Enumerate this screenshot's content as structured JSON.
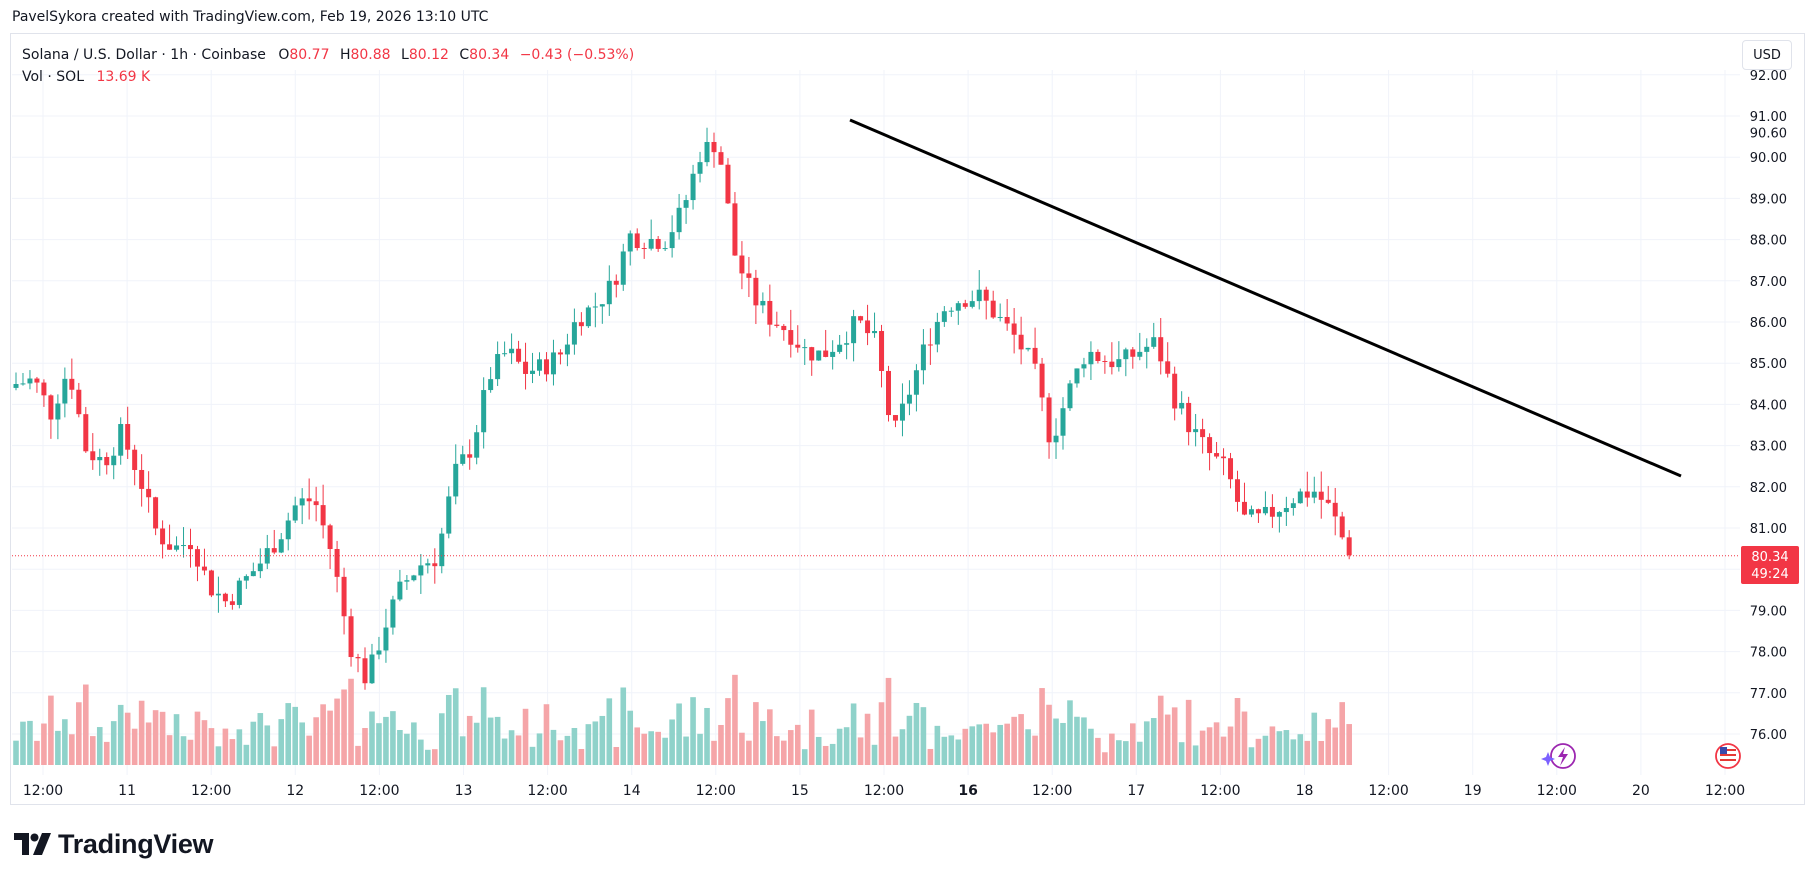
{
  "attribution": "PavelSykora created with TradingView.com, Feb 19, 2026 13:10 UTC",
  "legend": {
    "symbol": "Solana / U.S. Dollar · 1h · Coinbase",
    "o_label": "O",
    "o_value": "80.77",
    "h_label": "H",
    "h_value": "80.88",
    "l_label": "L",
    "l_value": "80.12",
    "c_label": "C",
    "c_value": "80.34",
    "change": "−0.43 (−0.53%)",
    "vol_label": "Vol · SOL",
    "vol_value": "13.69 K"
  },
  "currency_button": "USD",
  "logo_text": "TradingView",
  "price_tag": {
    "price": "80.34",
    "countdown": "49:24"
  },
  "colors": {
    "up": "#26a69a",
    "down": "#f23645",
    "vol_up": "#8fd2ca",
    "vol_down": "#f5a5a8",
    "trendline": "#000000"
  },
  "icons": [
    "lightning-icon",
    "us-flag-icon",
    "tradingview-logo-icon"
  ],
  "chart_data": {
    "type": "candlestick",
    "instrument": "Solana / U.S. Dollar",
    "interval": "1h",
    "exchange": "Coinbase",
    "y_ticks": [
      92,
      91,
      90,
      89,
      88,
      87,
      86,
      85,
      84,
      83,
      82,
      81,
      80,
      79,
      78,
      77,
      76
    ],
    "y_tick_labels": [
      "92.00",
      "91.00",
      "90.00",
      "89.00",
      "88.00",
      "87.00",
      "86.00",
      "85.00",
      "84.00",
      "83.00",
      "82.00",
      "81.00",
      "80.00",
      "79.00",
      "78.00",
      "77.00",
      "76.00"
    ],
    "y_extra_label": "90.60",
    "ylim": [
      75,
      92.5
    ],
    "x_tick_labels": [
      "12:00",
      "11",
      "12:00",
      "12",
      "12:00",
      "13",
      "12:00",
      "14",
      "12:00",
      "15",
      "12:00",
      "16",
      "12:00",
      "17",
      "12:00",
      "18",
      "12:00",
      "19",
      "12:00",
      "20",
      "12:00"
    ],
    "bold_tick": "16",
    "last_price": 80.34,
    "close_path": [
      84.5,
      84.6,
      83.8,
      84.9,
      82.9,
      82.6,
      83.3,
      82.3,
      80.9,
      80.5,
      80.7,
      79.6,
      79.2,
      79.7,
      80.2,
      80.8,
      81.6,
      81.7,
      80.4,
      78.2,
      77.3,
      78.6,
      79.6,
      80.1,
      80.3,
      82.3,
      83.0,
      84.7,
      85.3,
      84.8,
      84.9,
      85.2,
      86.1,
      86.4,
      86.9,
      88.1,
      88.0,
      88.0,
      88.7,
      90.1,
      90.4,
      87.6,
      86.6,
      86.1,
      85.8,
      85.3,
      85.2,
      85.6,
      86.0,
      85.5,
      83.2,
      84.4,
      85.6,
      86.4,
      86.6,
      86.6,
      86.1,
      85.6,
      84.9,
      83.1,
      84.3,
      85.3,
      85.1,
      85.0,
      85.3,
      85.5,
      84.2,
      83.4,
      82.8,
      82.4,
      81.2,
      81.2,
      81.5,
      81.8,
      81.9,
      81.4,
      80.34
    ],
    "volume_label": "Vol · SOL",
    "volume_last": "13.69 K",
    "trendline": {
      "start": {
        "time": "Feb 15 ~09:00",
        "price": 90.9
      },
      "end": {
        "time": "Feb 20 ~03:00",
        "price": 82.3
      }
    }
  }
}
